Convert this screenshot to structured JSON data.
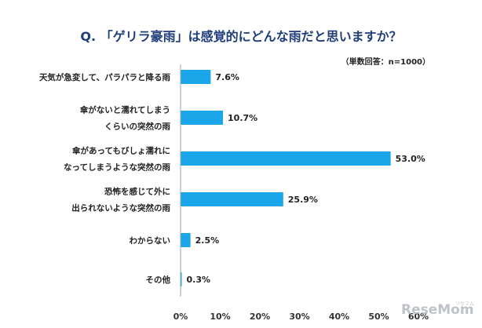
{
  "chart_data": {
    "type": "bar",
    "orientation": "horizontal",
    "title": "Q. 「ゲリラ豪雨」は感覚的にどんな雨だと思いますか？",
    "note": "（単数回答：n=1000）",
    "categories": [
      [
        "天気が急変して、パラパラと降る雨"
      ],
      [
        "傘がないと濡れてしまう",
        "くらいの突然の雨"
      ],
      [
        "傘があってもびしょ濡れに",
        "なってしまうような突然の雨"
      ],
      [
        "恐怖を感じて外に",
        "出られないような突然の雨"
      ],
      [
        "わからない"
      ],
      [
        "その他"
      ]
    ],
    "values": [
      7.6,
      10.7,
      53.0,
      25.9,
      2.5,
      0.3
    ],
    "value_labels": [
      "7.6%",
      "10.7%",
      "53.0%",
      "25.9%",
      "2.5%",
      "0.3%"
    ],
    "xlim": [
      0,
      60
    ],
    "xticks": [
      "0%",
      "10%",
      "20%",
      "30%",
      "40%",
      "50%",
      "60%"
    ],
    "bar_color": "#1aa6e8",
    "grid": false
  },
  "watermark": {
    "text": "ReseMom",
    "sub": "リセマム"
  }
}
